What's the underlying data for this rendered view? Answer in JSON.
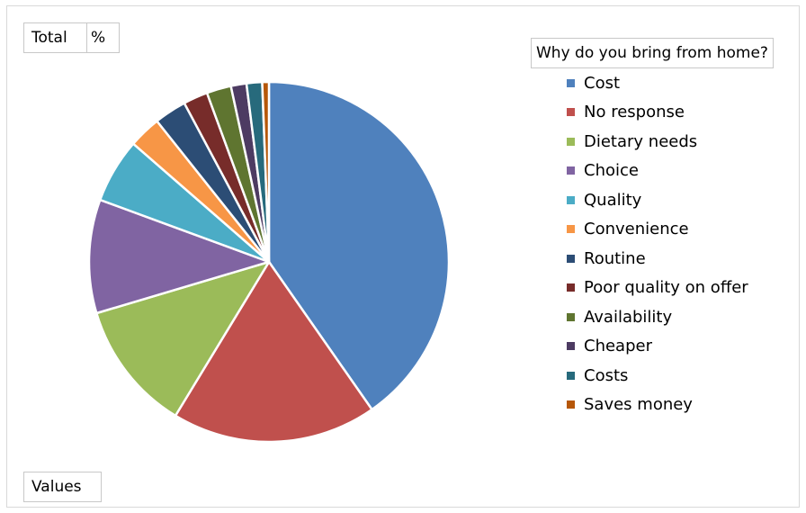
{
  "buttons": {
    "total_label": "Total",
    "percent_label": "%",
    "values_label": "Values"
  },
  "chart_data": {
    "type": "pie",
    "title": "",
    "legend_title": "Why do you bring from home?",
    "legend_position": "right",
    "categories": [
      "Cost",
      "No response",
      "Dietary needs",
      "Choice",
      "Quality",
      "Convenience",
      "Routine",
      "Poor quality on offer",
      "Availability",
      "Cheaper",
      "Costs",
      "Saves money"
    ],
    "values": [
      40.3,
      18.4,
      11.7,
      10.2,
      5.8,
      2.9,
      2.9,
      2.2,
      2.2,
      1.4,
      1.4,
      0.6
    ],
    "colors": [
      "#4f81bd",
      "#c0504d",
      "#9bbb59",
      "#8064a2",
      "#4bacc6",
      "#f79646",
      "#2c4d75",
      "#772c2a",
      "#5f7530",
      "#4d3b62",
      "#276a7c",
      "#b65708"
    ]
  }
}
